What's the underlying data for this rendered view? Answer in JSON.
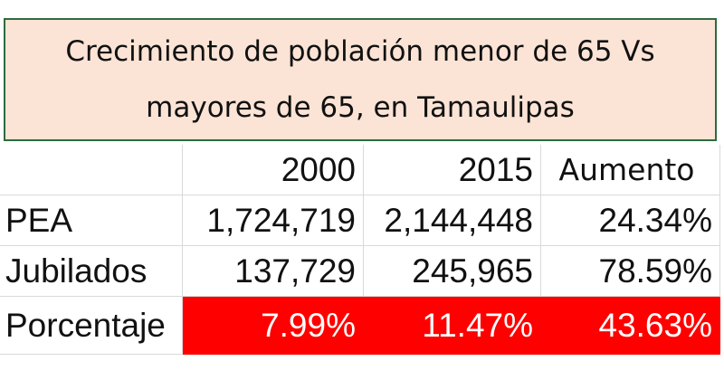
{
  "title": "Crecimiento de población menor de 65 Vs mayores de 65, en Tamaulipas",
  "table": {
    "columns": [
      "2000",
      "2015",
      "Aumento"
    ],
    "rows": [
      {
        "label": "PEA",
        "cells": [
          "1,724,719",
          "2,144,448",
          "24.34%"
        ]
      },
      {
        "label": "Jubilados",
        "cells": [
          "137,729",
          "245,965",
          "78.59%"
        ]
      },
      {
        "label": "Porcentaje",
        "cells": [
          "7.99%",
          "11.47%",
          "43.63%"
        ]
      }
    ]
  }
}
